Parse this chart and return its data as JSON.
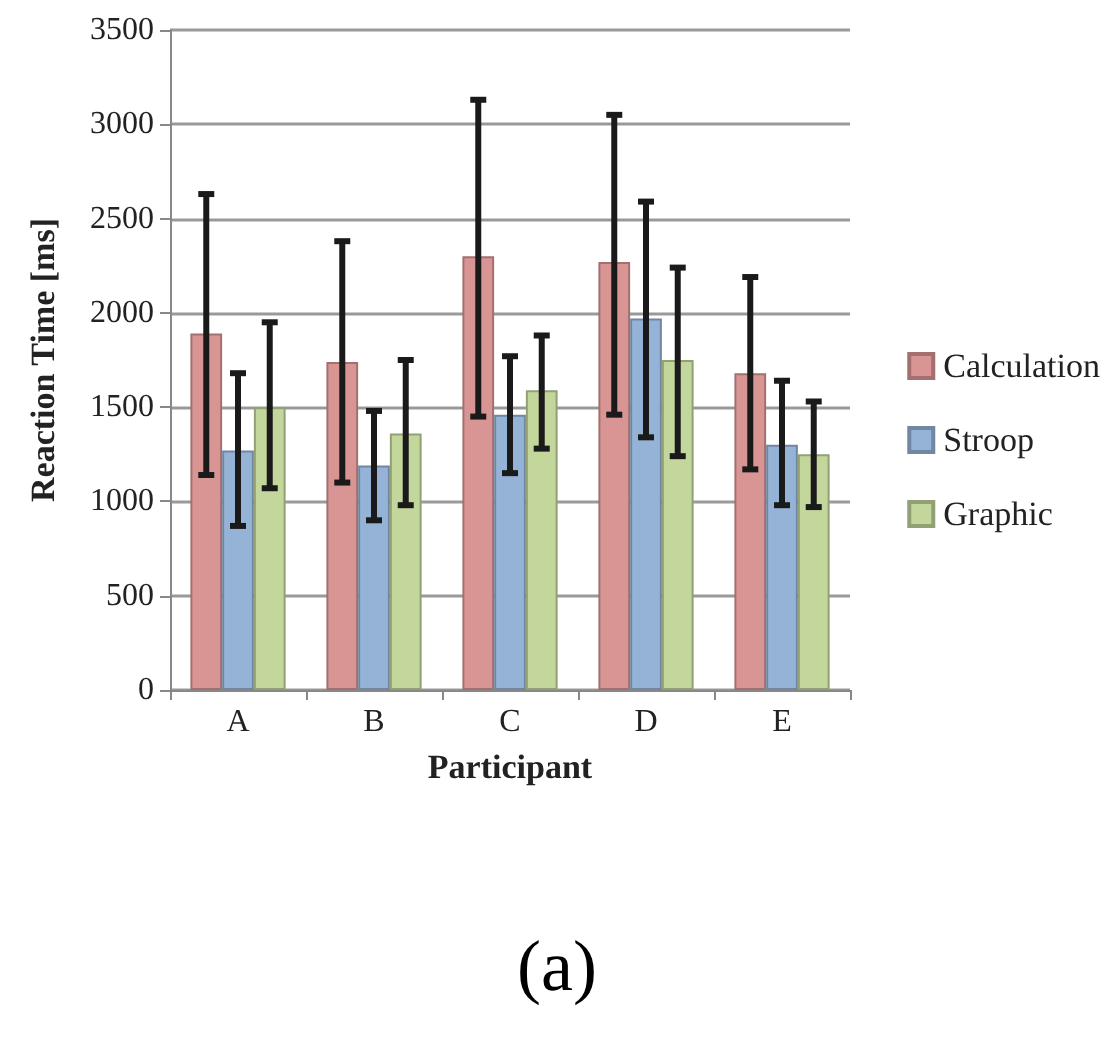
{
  "chart_data": {
    "type": "bar",
    "xlabel": "Participant",
    "ylabel": "Reaction Time [ms]",
    "categories": [
      "A",
      "B",
      "C",
      "D",
      "E"
    ],
    "series": [
      {
        "name": "Calculation",
        "color": "#d99594",
        "values": [
          1890,
          1740,
          2300,
          2270,
          1680
        ],
        "errors": [
          [
            1140,
            2630
          ],
          [
            1100,
            2380
          ],
          [
            1450,
            3130
          ],
          [
            1460,
            3050
          ],
          [
            1170,
            2190
          ]
        ]
      },
      {
        "name": "Stroop",
        "color": "#95b3d7",
        "values": [
          1270,
          1190,
          1460,
          1970,
          1300
        ],
        "errors": [
          [
            870,
            1680
          ],
          [
            900,
            1480
          ],
          [
            1150,
            1770
          ],
          [
            1340,
            2590
          ],
          [
            980,
            1640
          ]
        ]
      },
      {
        "name": "Graphic",
        "color": "#c3d69b",
        "values": [
          1500,
          1360,
          1590,
          1750,
          1250
        ],
        "errors": [
          [
            1070,
            1950
          ],
          [
            980,
            1750
          ],
          [
            1280,
            1880
          ],
          [
            1240,
            2240
          ],
          [
            970,
            1530
          ]
        ]
      }
    ],
    "ylim": [
      0,
      3500
    ],
    "yticks": [
      0,
      500,
      1000,
      1500,
      2000,
      2500,
      3000,
      3500
    ],
    "grid": "y",
    "legend": "right",
    "annotations": [
      "(a)"
    ]
  }
}
